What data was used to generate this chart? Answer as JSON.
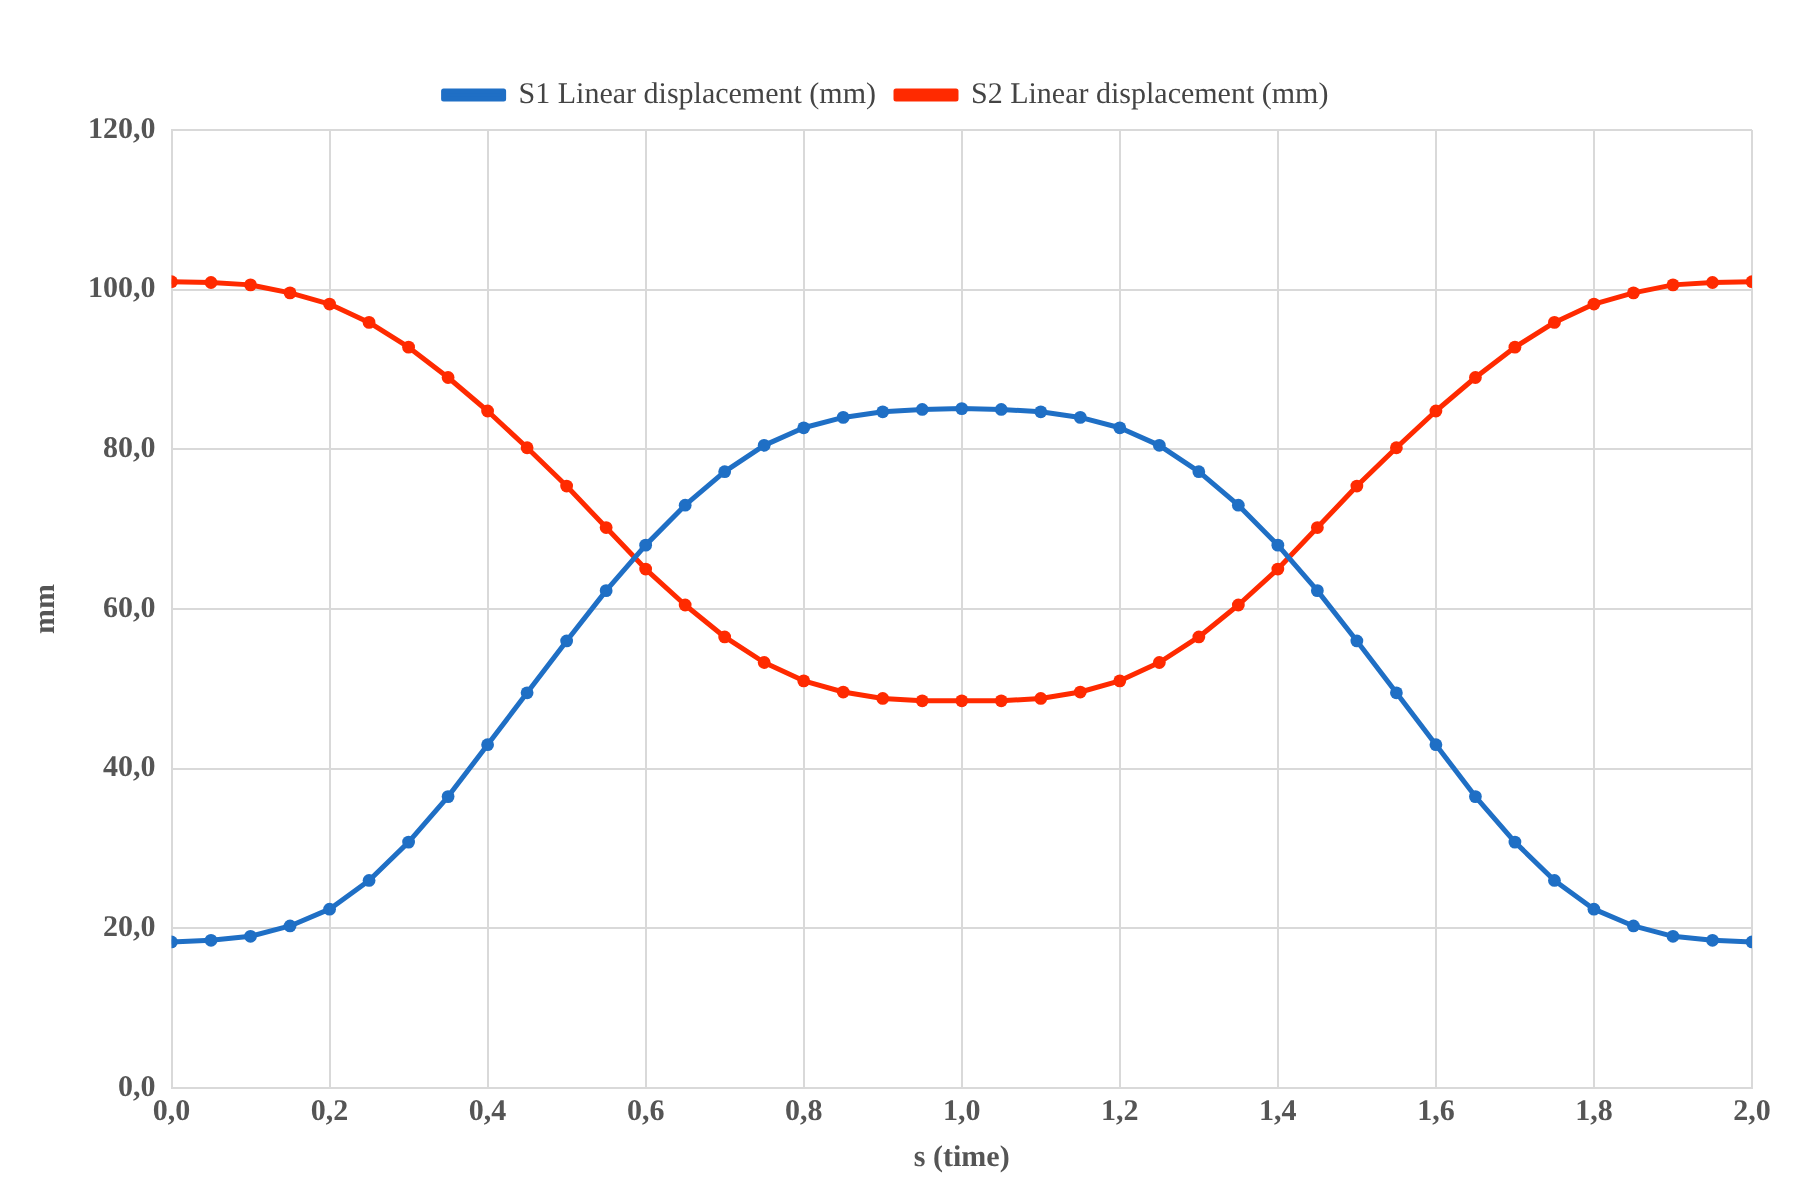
{
  "chart_data": {
    "type": "line",
    "xlabel": "s (time)",
    "ylabel": "mm",
    "x": [
      0,
      0.05,
      0.1,
      0.15,
      0.2,
      0.25,
      0.3,
      0.35,
      0.4,
      0.45,
      0.5,
      0.55,
      0.6,
      0.65,
      0.7,
      0.75,
      0.8,
      0.85,
      0.9,
      0.95,
      1.0,
      1.05,
      1.1,
      1.15,
      1.2,
      1.25,
      1.3,
      1.35,
      1.4,
      1.45,
      1.5,
      1.55,
      1.6,
      1.65,
      1.7,
      1.75,
      1.8,
      1.85,
      1.9,
      1.95,
      2.0
    ],
    "series": [
      {
        "name": "S1 Linear displacement (mm)",
        "color": "#1f6fc5",
        "values": [
          18.3,
          18.5,
          19.0,
          20.3,
          22.4,
          26.0,
          30.8,
          36.5,
          43.0,
          49.5,
          56.0,
          62.3,
          68.0,
          73.0,
          77.2,
          80.5,
          82.7,
          84.0,
          84.7,
          85.0,
          85.1,
          85.0,
          84.7,
          84.0,
          82.7,
          80.5,
          77.2,
          73.0,
          68.0,
          62.3,
          56.0,
          49.5,
          43.0,
          36.5,
          30.8,
          26.0,
          22.4,
          20.3,
          19.0,
          18.5,
          18.3
        ]
      },
      {
        "name": "S2 Linear displacement (mm)",
        "color": "#ff2a00",
        "values": [
          101.0,
          100.9,
          100.6,
          99.6,
          98.2,
          95.9,
          92.8,
          89.0,
          84.8,
          80.2,
          75.4,
          70.2,
          65.0,
          60.5,
          56.5,
          53.3,
          51.0,
          49.6,
          48.8,
          48.5,
          48.5,
          48.5,
          48.8,
          49.6,
          51.0,
          53.3,
          56.5,
          60.5,
          65.0,
          70.2,
          75.4,
          80.2,
          84.8,
          89.0,
          92.8,
          95.9,
          98.2,
          99.6,
          100.6,
          100.9,
          101.0
        ]
      }
    ],
    "xlim": [
      0,
      2
    ],
    "xticks": [
      {
        "value": 0,
        "label": "0,0"
      },
      {
        "value": 0.2,
        "label": "0,2"
      },
      {
        "value": 0.4,
        "label": "0,4"
      },
      {
        "value": 0.6,
        "label": "0,6"
      },
      {
        "value": 0.8,
        "label": "0,8"
      },
      {
        "value": 1,
        "label": "1,0"
      },
      {
        "value": 1.2,
        "label": "1,2"
      },
      {
        "value": 1.4,
        "label": "1,4"
      },
      {
        "value": 1.6,
        "label": "1,6"
      },
      {
        "value": 1.8,
        "label": "1,8"
      },
      {
        "value": 2,
        "label": "2,0"
      }
    ],
    "ylim": [
      0,
      120
    ],
    "yticks": [
      {
        "value": 0,
        "label": "0,0"
      },
      {
        "value": 20,
        "label": "20,0"
      },
      {
        "value": 40,
        "label": "40,0"
      },
      {
        "value": 60,
        "label": "60,0"
      },
      {
        "value": 80,
        "label": "80,0"
      },
      {
        "value": 100,
        "label": "100,0"
      },
      {
        "value": 120,
        "label": "120,0"
      }
    ],
    "grid": true,
    "legend": "top",
    "marker": "circle",
    "line_style": "solid"
  }
}
